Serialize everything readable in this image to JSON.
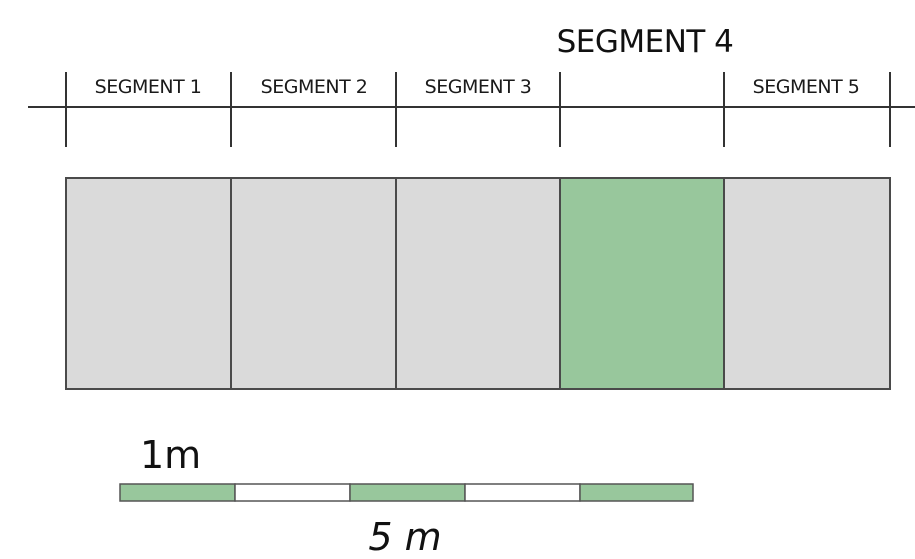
{
  "highlight_title": "SEGMENT 4",
  "segments": [
    {
      "label": "SEGMENT 1",
      "highlighted": false
    },
    {
      "label": "SEGMENT 2",
      "highlighted": false
    },
    {
      "label": "SEGMENT 3",
      "highlighted": false
    },
    {
      "label": "",
      "highlighted": true
    },
    {
      "label": "SEGMENT 5",
      "highlighted": false
    }
  ],
  "scale_bar": {
    "unit_label": "1m",
    "total_label": "5 m",
    "divisions": 5,
    "pattern": [
      "filled",
      "empty",
      "filled",
      "empty",
      "filled"
    ]
  },
  "colors": {
    "highlight": "#98c79c",
    "segment_fill": "#dadada",
    "outline": "#4a4a4a",
    "scale_filled": "#98c79c",
    "scale_empty": "#ffffff"
  }
}
